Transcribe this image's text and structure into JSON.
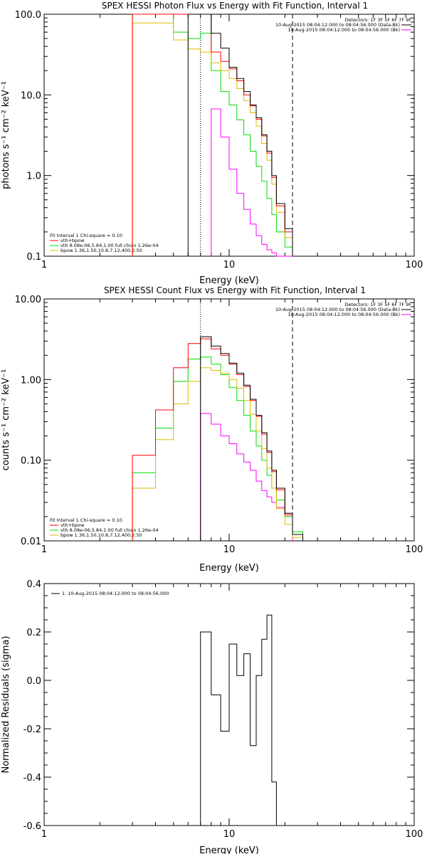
{
  "colors": {
    "total": "#000000",
    "sum": "#ff0000",
    "vth": "#00dd00",
    "bpow": "#ddbb00",
    "bk": "#ff00ff"
  },
  "chart_data": [
    {
      "type": "line",
      "title": "SPEX HESSI Photon Flux vs Energy with Fit Function, Interval 1",
      "xlabel": "Energy (keV)",
      "ylabel": "photons s⁻¹ cm⁻² keV⁻¹",
      "x_scale": "log",
      "y_scale": "log",
      "xlim": [
        1,
        100
      ],
      "ylim": [
        0.1,
        100
      ],
      "x_ticks": [
        "1",
        "10",
        "100"
      ],
      "y_ticks": [
        "100.0",
        "10.0",
        "1.0",
        "0.1"
      ],
      "header": [
        "Detectors: 1F 3F 5F 6F 7F 9F",
        "10-Aug-2015 08:04:12.000 to 08:04:56.000 (Data-Bk)",
        "10-Aug-2015 08:04:12.000 to 08:04:56.000 (Bk)"
      ],
      "legend": [
        "Fit Interval 1    Chi-square = 0.10",
        "vth+bpow",
        "vth 8.08e-06,5.84,1.00   full chian 1.26e-04",
        "bpow 1.36,1.50,10.8,7.12,400,2.50"
      ],
      "vlines": [
        7.0,
        22.0
      ],
      "edges": [
        3.0,
        4.0,
        5.0,
        6.0,
        7.0,
        8.0,
        9.0,
        10.0,
        11.0,
        12.0,
        13.0,
        14.0,
        15.0,
        16.0,
        17.0,
        18.0,
        20.0,
        22.0,
        25.0
      ],
      "series": [
        {
          "name": "Data-Bk",
          "role": "total",
          "values": [
            null,
            null,
            null,
            100,
            100,
            58,
            38,
            22,
            16,
            11,
            7.5,
            5.2,
            3.2,
            2.0,
            1.0,
            0.45,
            0.22,
            0.1
          ]
        },
        {
          "name": "vth+bpow",
          "role": "sum",
          "values": [
            100,
            100,
            100,
            100,
            100,
            34,
            26,
            21,
            15,
            10,
            7.3,
            5.0,
            3.1,
            1.9,
            0.95,
            0.42,
            0.2,
            0.1
          ]
        },
        {
          "name": "vth",
          "role": "vth",
          "values": [
            100,
            100,
            60,
            50,
            58,
            20,
            11,
            7.5,
            4.9,
            3.2,
            2.0,
            1.3,
            0.85,
            0.52,
            0.33,
            0.2,
            0.13,
            0.1
          ]
        },
        {
          "name": "bpow",
          "role": "bpow",
          "values": [
            78,
            78,
            48,
            37,
            34,
            25,
            20,
            16,
            12,
            8.5,
            6.0,
            4.1,
            2.5,
            1.55,
            0.78,
            0.35,
            0.17,
            0.1
          ]
        },
        {
          "name": "Bk",
          "role": "bk",
          "values": [
            null,
            null,
            null,
            null,
            null,
            6.7,
            3.0,
            1.2,
            0.6,
            0.38,
            0.25,
            0.18,
            0.14,
            0.12,
            0.11,
            0.1,
            0.1,
            null
          ]
        }
      ]
    },
    {
      "type": "line",
      "title": "SPEX HESSI Count Flux vs Energy with Fit Function, Interval 1",
      "xlabel": "Energy (keV)",
      "ylabel": "counts s⁻¹ cm⁻² keV⁻¹",
      "x_scale": "log",
      "y_scale": "log",
      "xlim": [
        1,
        100
      ],
      "ylim": [
        0.01,
        10
      ],
      "x_ticks": [
        "1",
        "10",
        "100"
      ],
      "y_ticks": [
        "10.00",
        "1.00",
        "0.10",
        "0.01"
      ],
      "header": [
        "Detectors: 1F 3F 5F 6F 7F 9F",
        "10-Aug-2015 08:04:12.000 to 08:04:56.000 (Data-Bk)",
        "10-Aug-2015 08:04:12.000 to 08:04:56.000 (Bk)"
      ],
      "legend": [
        "Fit Interval 1    Chi-square = 0.10",
        "vth+bpow",
        "vth 8.08e-06,5.84,1.00   full chian 1.26e-04",
        "bpow 1.36,1.50,10.8,7.12,400,2.50"
      ],
      "vlines": [
        7.0,
        22.0
      ],
      "edges": [
        3.0,
        4.0,
        5.0,
        6.0,
        7.0,
        8.0,
        9.0,
        10.0,
        11.0,
        12.0,
        13.0,
        14.0,
        15.0,
        16.0,
        17.0,
        18.0,
        20.0,
        22.0,
        25.0
      ],
      "series": [
        {
          "name": "Data-Bk",
          "role": "total",
          "values": [
            null,
            null,
            null,
            null,
            3.4,
            2.6,
            2.1,
            1.6,
            1.2,
            0.85,
            0.57,
            0.36,
            0.22,
            0.13,
            0.075,
            0.045,
            0.022,
            0.012
          ]
        },
        {
          "name": "vth+bpow",
          "role": "sum",
          "values": [
            0.115,
            0.42,
            1.4,
            2.8,
            3.2,
            2.4,
            2.0,
            1.55,
            1.15,
            0.82,
            0.55,
            0.35,
            0.21,
            0.125,
            0.072,
            0.043,
            0.021,
            0.012
          ]
        },
        {
          "name": "vth",
          "role": "vth",
          "values": [
            0.07,
            0.25,
            0.95,
            1.8,
            1.9,
            1.55,
            1.15,
            0.8,
            0.55,
            0.36,
            0.23,
            0.15,
            0.1,
            0.065,
            0.045,
            0.032,
            0.02,
            0.013
          ]
        },
        {
          "name": "bpow",
          "role": "bpow",
          "values": [
            0.045,
            0.18,
            0.5,
            0.95,
            1.4,
            1.3,
            1.2,
            1.0,
            0.78,
            0.55,
            0.37,
            0.23,
            0.14,
            0.08,
            0.045,
            0.025,
            0.016,
            0.011
          ]
        },
        {
          "name": "Bk",
          "role": "bk",
          "values": [
            null,
            null,
            null,
            null,
            0.38,
            0.28,
            0.2,
            0.16,
            0.12,
            0.095,
            0.075,
            0.055,
            0.042,
            0.035,
            0.03,
            0.026,
            0.022,
            null
          ]
        }
      ]
    },
    {
      "type": "line",
      "title": "",
      "xlabel": "Energy (keV)",
      "ylabel": "Normalized Residuals (sigma)",
      "x_scale": "log",
      "y_scale": "linear",
      "xlim": [
        1,
        100
      ],
      "ylim": [
        -0.6,
        0.4
      ],
      "x_ticks": [
        "1",
        "10",
        "100"
      ],
      "y_ticks": [
        "0.4",
        "0.2",
        "0.0",
        "-0.2",
        "-0.4",
        "-0.6"
      ],
      "legend": [
        "1. 10-Aug-2015 08:04:12.000 to 08:04:56.000"
      ],
      "edges": [
        7.0,
        8.0,
        9.0,
        10.0,
        11.0,
        12.0,
        13.0,
        14.0,
        15.0,
        16.0,
        17.0,
        18.0,
        20.0,
        22.0
      ],
      "series": [
        {
          "name": "1. 10-Aug-2015 08:04:12.000 to 08:04:56.000",
          "role": "total",
          "values": [
            0.2,
            -0.06,
            -0.21,
            0.15,
            0.02,
            0.11,
            -0.27,
            0.02,
            0.17,
            0.27,
            -0.42,
            -0.6,
            -0.6
          ]
        }
      ]
    }
  ]
}
